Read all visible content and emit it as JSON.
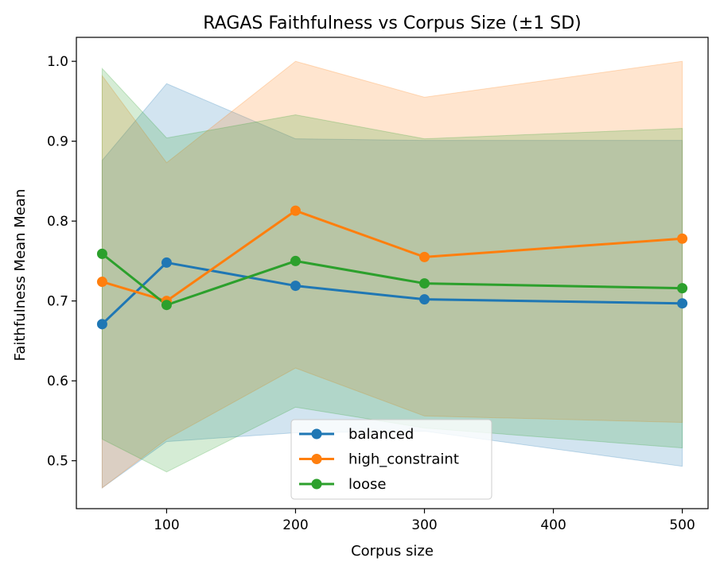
{
  "chart_data": {
    "type": "line",
    "title": "RAGAS Faithfulness vs Corpus Size (±1 SD)",
    "xlabel": "Corpus size",
    "ylabel": "Faithfulness Mean Mean",
    "x": [
      50,
      100,
      200,
      300,
      500
    ],
    "xlim": [
      30,
      520
    ],
    "ylim": [
      0.44,
      1.03
    ],
    "xticks": [
      100,
      200,
      300,
      400,
      500
    ],
    "yticks": [
      0.5,
      0.6,
      0.7,
      0.8,
      0.9,
      1.0
    ],
    "xtick_labels": [
      "100",
      "200",
      "300",
      "400",
      "500"
    ],
    "ytick_labels": [
      "0.5",
      "0.6",
      "0.7",
      "0.8",
      "0.9",
      "1.0"
    ],
    "legend_position": "lower center",
    "grid": false,
    "series": [
      {
        "name": "balanced",
        "color": "#1f77b4",
        "values": [
          0.671,
          0.748,
          0.719,
          0.702,
          0.697
        ],
        "upper": [
          0.876,
          0.972,
          0.903,
          0.901,
          0.901
        ],
        "lower": [
          0.466,
          0.524,
          0.535,
          0.537,
          0.493
        ]
      },
      {
        "name": "high_constraint",
        "color": "#ff7f0e",
        "values": [
          0.724,
          0.7,
          0.813,
          0.755,
          0.778
        ],
        "upper": [
          0.982,
          0.873,
          1.0,
          0.955,
          1.0
        ],
        "lower": [
          0.466,
          0.527,
          0.616,
          0.556,
          0.548
        ]
      },
      {
        "name": "loose",
        "color": "#2ca02c",
        "values": [
          0.759,
          0.695,
          0.75,
          0.722,
          0.716
        ],
        "upper": [
          0.991,
          0.904,
          0.933,
          0.903,
          0.916
        ],
        "lower": [
          0.527,
          0.486,
          0.567,
          0.541,
          0.516
        ]
      }
    ]
  }
}
